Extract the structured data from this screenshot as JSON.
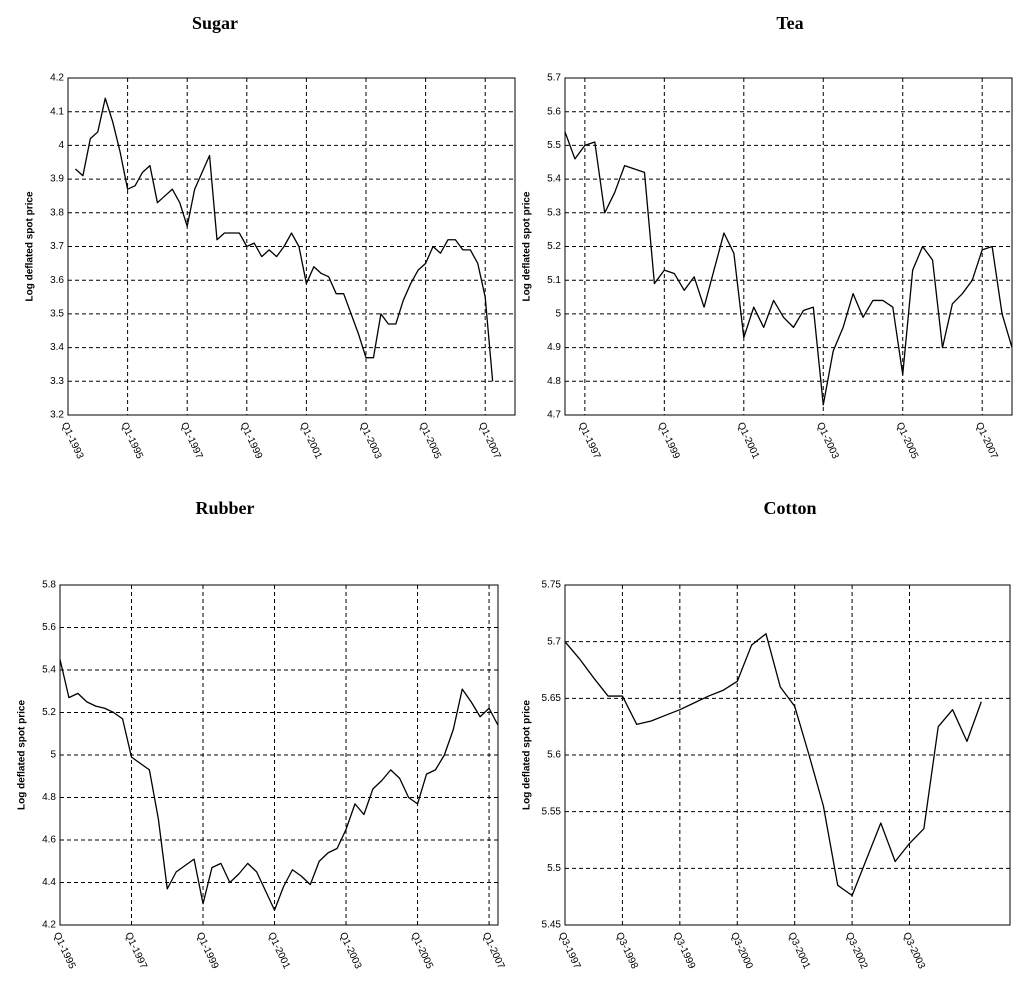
{
  "chart_data": [
    {
      "type": "line",
      "title": "Sugar",
      "y_label": "Log deflated spot price",
      "x": [
        1993.25,
        1993.5,
        1993.75,
        1994,
        1994.25,
        1994.5,
        1994.75,
        1995,
        1995.25,
        1995.5,
        1995.75,
        1996,
        1996.25,
        1996.5,
        1996.75,
        1997,
        1997.25,
        1997.5,
        1997.75,
        1998,
        1998.25,
        1998.5,
        1998.75,
        1999,
        1999.25,
        1999.5,
        1999.75,
        2000,
        2000.25,
        2000.5,
        2000.75,
        2001,
        2001.25,
        2001.5,
        2001.75,
        2002,
        2002.25,
        2002.5,
        2002.75,
        2003,
        2003.25,
        2003.5,
        2003.75,
        2004,
        2004.25,
        2004.5,
        2004.75,
        2005,
        2005.25,
        2005.5,
        2005.75,
        2006,
        2006.25,
        2006.5,
        2006.75,
        2007,
        2007.25
      ],
      "values": [
        3.93,
        3.91,
        4.02,
        4.04,
        4.14,
        4.07,
        3.98,
        3.87,
        3.88,
        3.92,
        3.94,
        3.83,
        3.85,
        3.87,
        3.83,
        3.76,
        3.87,
        3.92,
        3.97,
        3.72,
        3.74,
        3.74,
        3.74,
        3.7,
        3.71,
        3.67,
        3.69,
        3.67,
        3.7,
        3.74,
        3.7,
        3.59,
        3.64,
        3.62,
        3.61,
        3.56,
        3.56,
        3.5,
        3.44,
        3.37,
        3.37,
        3.5,
        3.47,
        3.47,
        3.54,
        3.59,
        3.63,
        3.65,
        3.7,
        3.68,
        3.72,
        3.72,
        3.69,
        3.69,
        3.65,
        3.55,
        3.3
      ],
      "color": "#000000",
      "grid": true,
      "xlim": [
        1993,
        2008
      ],
      "ylim": [
        3.2,
        4.2
      ],
      "xticks": [
        {
          "value": 1993,
          "label": "Q1-1993"
        },
        {
          "value": 1995,
          "label": "Q1-1995"
        },
        {
          "value": 1997,
          "label": "Q1-1997"
        },
        {
          "value": 1999,
          "label": "Q1-1999"
        },
        {
          "value": 2001,
          "label": "Q1-2001"
        },
        {
          "value": 2003,
          "label": "Q1-2003"
        },
        {
          "value": 2005,
          "label": "Q1-2005"
        },
        {
          "value": 2007,
          "label": "Q1-2007"
        }
      ],
      "yticks": [
        3.2,
        3.3,
        3.4,
        3.5,
        3.6,
        3.7,
        3.8,
        3.9,
        4,
        4.1,
        4.2
      ]
    },
    {
      "type": "line",
      "title": "Tea",
      "y_label": "Log deflated spot price",
      "x": [
        1996.5,
        1996.75,
        1997,
        1997.25,
        1997.5,
        1997.75,
        1998,
        1998.25,
        1998.5,
        1998.75,
        1999,
        1999.25,
        1999.5,
        1999.75,
        2000,
        2000.25,
        2000.5,
        2000.75,
        2001,
        2001.25,
        2001.5,
        2001.75,
        2002,
        2002.25,
        2002.5,
        2002.75,
        2003,
        2003.25,
        2003.5,
        2003.75,
        2004,
        2004.25,
        2004.5,
        2004.75,
        2005,
        2005.25,
        2005.5,
        2005.75,
        2006,
        2006.25,
        2006.5,
        2006.75,
        2007,
        2007.25,
        2007.5,
        2007.75
      ],
      "values": [
        5.54,
        5.46,
        5.5,
        5.51,
        5.3,
        5.36,
        5.44,
        5.43,
        5.42,
        5.09,
        5.13,
        5.12,
        5.07,
        5.11,
        5.02,
        5.13,
        5.24,
        5.18,
        4.93,
        5.02,
        4.96,
        5.04,
        4.99,
        4.96,
        5.01,
        5.02,
        4.73,
        4.89,
        4.96,
        5.06,
        4.99,
        5.04,
        5.04,
        5.02,
        4.82,
        5.13,
        5.2,
        5.16,
        4.9,
        5.03,
        5.06,
        5.1,
        5.19,
        5.2,
        5.0,
        4.9
      ],
      "color": "#000000",
      "grid": true,
      "xlim": [
        1996.5,
        2007.75
      ],
      "ylim": [
        4.7,
        5.7
      ],
      "xticks": [
        {
          "value": 1997,
          "label": "Q1-1997"
        },
        {
          "value": 1999,
          "label": "Q1-1999"
        },
        {
          "value": 2001,
          "label": "Q1-2001"
        },
        {
          "value": 2003,
          "label": "Q1-2003"
        },
        {
          "value": 2005,
          "label": "Q1-2005"
        },
        {
          "value": 2007,
          "label": "Q1-2007"
        }
      ],
      "yticks": [
        4.7,
        4.8,
        4.9,
        5,
        5.1,
        5.2,
        5.3,
        5.4,
        5.5,
        5.6,
        5.7
      ]
    },
    {
      "type": "line",
      "title": "Rubber",
      "y_label": "Log deflated spot price",
      "x": [
        1995,
        1995.25,
        1995.5,
        1995.75,
        1996,
        1996.25,
        1996.5,
        1996.75,
        1997,
        1997.25,
        1997.5,
        1997.75,
        1998,
        1998.25,
        1998.5,
        1998.75,
        1999,
        1999.25,
        1999.5,
        1999.75,
        2000,
        2000.25,
        2000.5,
        2000.75,
        2001,
        2001.25,
        2001.5,
        2001.75,
        2002,
        2002.25,
        2002.5,
        2002.75,
        2003,
        2003.25,
        2003.5,
        2003.75,
        2004,
        2004.25,
        2004.5,
        2004.75,
        2005,
        2005.25,
        2005.5,
        2005.75,
        2006,
        2006.25,
        2006.5,
        2006.75,
        2007,
        2007.25
      ],
      "values": [
        5.45,
        5.27,
        5.29,
        5.25,
        5.23,
        5.22,
        5.2,
        5.17,
        4.99,
        4.96,
        4.93,
        4.7,
        4.37,
        4.45,
        4.48,
        4.51,
        4.3,
        4.47,
        4.49,
        4.4,
        4.44,
        4.49,
        4.45,
        4.36,
        4.27,
        4.38,
        4.46,
        4.43,
        4.39,
        4.5,
        4.54,
        4.56,
        4.65,
        4.77,
        4.72,
        4.84,
        4.88,
        4.93,
        4.89,
        4.8,
        4.77,
        4.91,
        4.93,
        5.0,
        5.12,
        5.31,
        5.25,
        5.18,
        5.22,
        5.14
      ],
      "color": "#000000",
      "grid": true,
      "xlim": [
        1995,
        2007.25
      ],
      "ylim": [
        4.2,
        5.8
      ],
      "xticks": [
        {
          "value": 1995,
          "label": "Q1-1995"
        },
        {
          "value": 1997,
          "label": "Q1-1997"
        },
        {
          "value": 1999,
          "label": "Q1-1999"
        },
        {
          "value": 2001,
          "label": "Q1-2001"
        },
        {
          "value": 2003,
          "label": "Q1-2003"
        },
        {
          "value": 2005,
          "label": "Q1-2005"
        },
        {
          "value": 2007,
          "label": "Q1-2007"
        }
      ],
      "yticks": [
        4.2,
        4.4,
        4.6,
        4.8,
        5,
        5.2,
        5.4,
        5.6,
        5.8
      ]
    },
    {
      "type": "line",
      "title": "Cotton",
      "y_label": "Log deflated spot price",
      "x": [
        1997.5,
        1997.75,
        1998,
        1998.25,
        1998.5,
        1998.75,
        1999,
        1999.25,
        1999.5,
        1999.75,
        2000,
        2000.25,
        2000.5,
        2000.75,
        2001,
        2001.25,
        2001.5,
        2001.75,
        2002,
        2002.25,
        2002.5,
        2002.75,
        2003,
        2003.25,
        2003.5,
        2003.75,
        2004,
        2004.25,
        2004.5,
        2004.75
      ],
      "values": [
        5.7,
        5.685,
        5.668,
        5.652,
        5.652,
        5.627,
        5.63,
        5.635,
        5.64,
        5.646,
        5.652,
        5.657,
        5.665,
        5.697,
        5.707,
        5.66,
        5.643,
        5.6,
        5.555,
        5.485,
        5.476,
        5.508,
        5.54,
        5.506,
        5.522,
        5.535,
        5.625,
        5.64,
        5.612,
        5.647
      ],
      "color": "#000000",
      "grid": true,
      "xlim": [
        1997.5,
        2005.25
      ],
      "ylim": [
        5.45,
        5.75
      ],
      "xticks": [
        {
          "value": 1997.5,
          "label": "Q3-1997"
        },
        {
          "value": 1998.5,
          "label": "Q3-1998"
        },
        {
          "value": 1999.5,
          "label": "Q3-1999"
        },
        {
          "value": 2000.5,
          "label": "Q3-2000"
        },
        {
          "value": 2001.5,
          "label": "Q3-2001"
        },
        {
          "value": 2002.5,
          "label": "Q3-2002"
        },
        {
          "value": 2003.5,
          "label": "Q3-2003"
        }
      ],
      "yticks": [
        5.45,
        5.5,
        5.55,
        5.6,
        5.65,
        5.7,
        5.75
      ]
    }
  ]
}
